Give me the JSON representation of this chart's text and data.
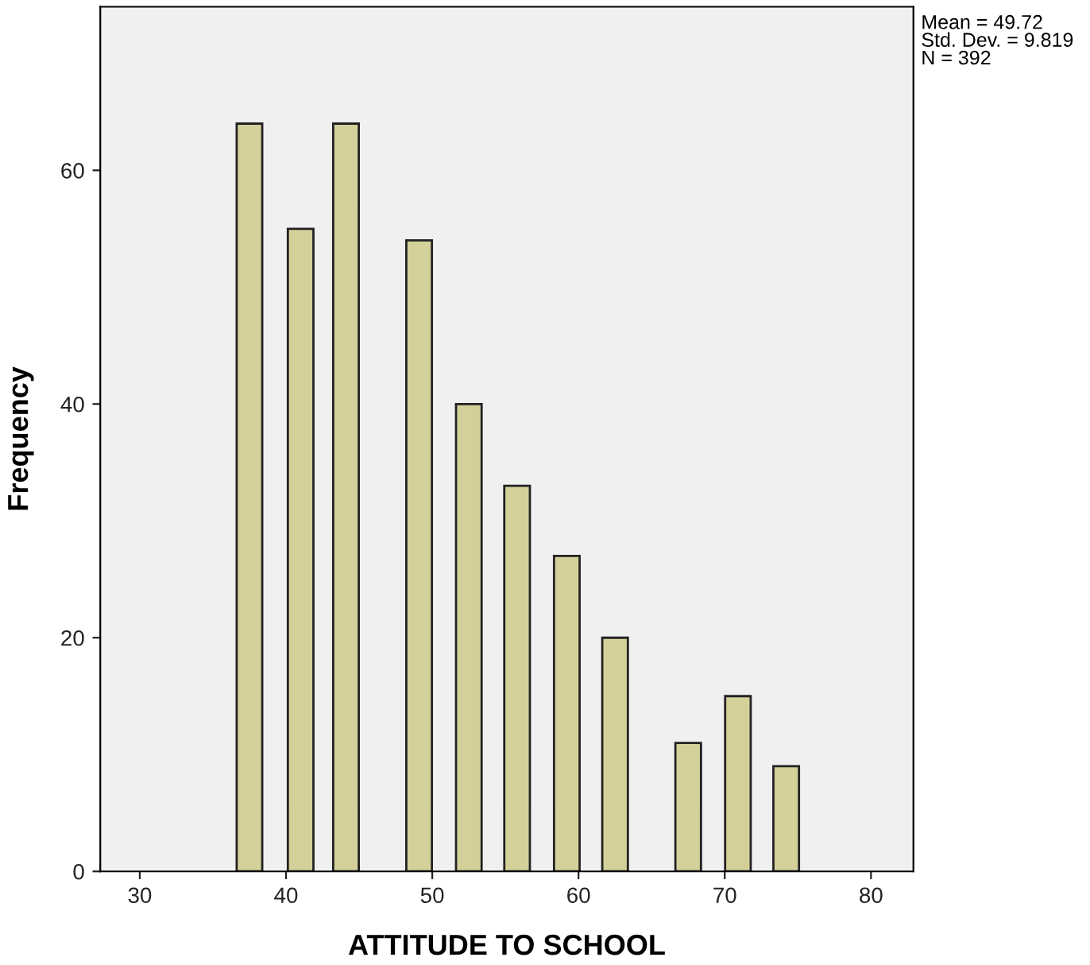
{
  "chart_data": {
    "type": "bar",
    "xlabel": "ATTITUDE TO SCHOOL",
    "ylabel": "Frequency",
    "x": [
      37.5,
      41.0,
      44.1,
      49.1,
      52.5,
      55.8,
      59.2,
      62.5,
      67.5,
      70.9,
      74.2
    ],
    "values": [
      64,
      55,
      64,
      54,
      40,
      33,
      27,
      20,
      11,
      15,
      9
    ],
    "color": "#d4d09a",
    "xlim": [
      27.3,
      82.9
    ],
    "xticks": [
      30,
      40,
      50,
      60,
      70,
      80
    ],
    "ylim": [
      0,
      74
    ],
    "yticks": [
      0,
      20,
      40,
      60
    ],
    "grid": false,
    "annotations": [
      "Mean = 49.72\nStd. Dev. = 9.819\nN = 392"
    ]
  }
}
